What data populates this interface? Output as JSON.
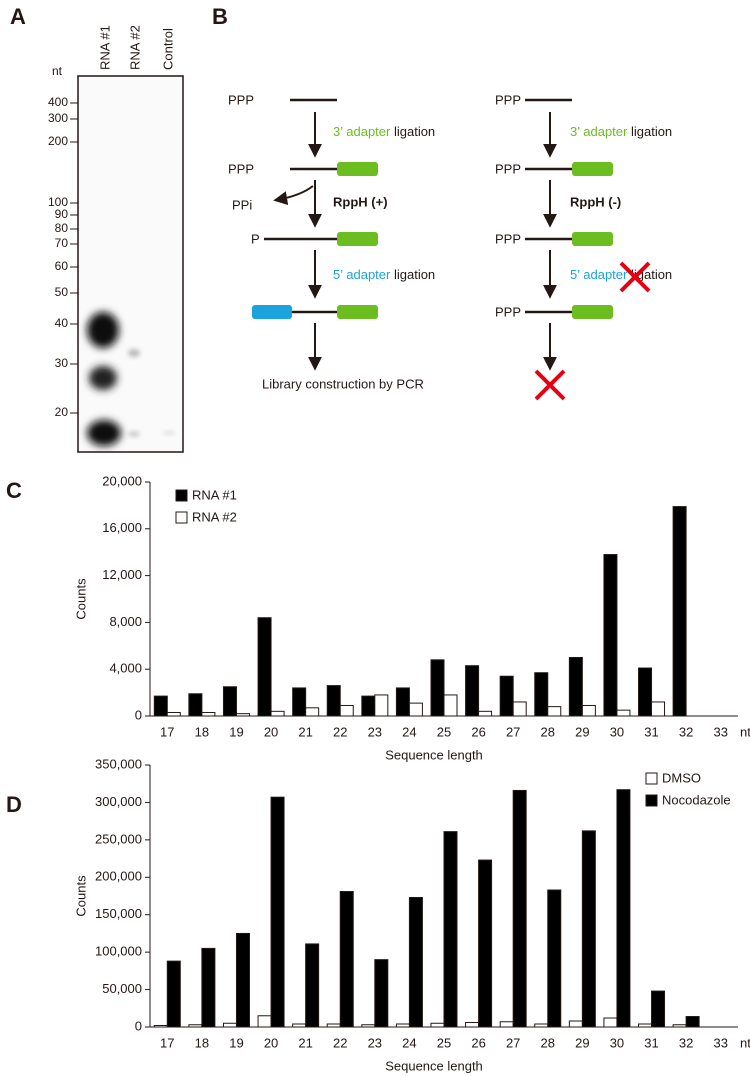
{
  "panel_labels": [
    "A",
    "B",
    "C",
    "D"
  ],
  "panel_a": {
    "unit": "nt",
    "lanes": [
      "RNA #1",
      "RNA #2",
      "Control"
    ],
    "markers": [
      "400",
      "300",
      "200",
      "100",
      "90",
      "80",
      "70",
      "60",
      "50",
      "40",
      "30",
      "20"
    ]
  },
  "panel_b": {
    "left": {
      "ppp_top": "PPP",
      "adapter3": "3’ adapter",
      "ligation3": "ligation",
      "ppp_mid": "PPP",
      "ppi": "PPi",
      "enzyme": "RppH (+)",
      "p": "P",
      "adapter5": "5’ adapter",
      "ligation5": "ligation",
      "result": "Library construction by PCR"
    },
    "right": {
      "ppp_top": "PPP",
      "adapter3": "3’ adapter",
      "ligation3": "ligation",
      "ppp_mid": "PPP",
      "enzyme": "RppH (-)",
      "ppp_third": "PPP",
      "adapter5": "5’ adapter",
      "ligation5": "ligation",
      "ppp_bottom": "PPP"
    }
  },
  "chart_data": [
    {
      "type": "bar",
      "x_label": "Sequence length",
      "y_label": "Counts",
      "x_unit": "nt",
      "categories": [
        "17",
        "18",
        "19",
        "20",
        "21",
        "22",
        "23",
        "24",
        "25",
        "26",
        "27",
        "28",
        "29",
        "30",
        "31",
        "32",
        "33"
      ],
      "series": [
        {
          "name": "RNA #1",
          "color": "#000000",
          "values": [
            1700,
            1900,
            2500,
            8400,
            2400,
            2600,
            1700,
            2400,
            4800,
            4300,
            3400,
            3700,
            5000,
            13800,
            4100,
            17900,
            0
          ]
        },
        {
          "name": "RNA #2",
          "color": "#ffffff",
          "values": [
            300,
            300,
            200,
            400,
            700,
            900,
            1800,
            1100,
            1800,
            400,
            1200,
            800,
            900,
            500,
            1200,
            0,
            0
          ]
        }
      ],
      "ylim": [
        0,
        20000
      ],
      "yticks": [
        0,
        {
          "value": 4000,
          "label": "4,000"
        },
        {
          "value": 8000,
          "label": "8,000"
        },
        {
          "value": 12000,
          "label": "12,000"
        },
        {
          "value": 16000,
          "label": "16,000"
        },
        {
          "value": 20000,
          "label": "20,000"
        }
      ],
      "legend": "upper left"
    },
    {
      "type": "bar",
      "x_label": "Sequence length",
      "y_label": "Counts",
      "x_unit": "nt",
      "categories": [
        "17",
        "18",
        "19",
        "20",
        "21",
        "22",
        "23",
        "24",
        "25",
        "26",
        "27",
        "28",
        "29",
        "30",
        "31",
        "32",
        "33"
      ],
      "series": [
        {
          "name": "DMSO",
          "color": "#ffffff",
          "values": [
            2000,
            3000,
            5000,
            15000,
            4000,
            4000,
            3000,
            4000,
            5000,
            6000,
            7000,
            4000,
            8000,
            12000,
            4000,
            3000,
            0
          ]
        },
        {
          "name": "Nocodazole",
          "color": "#000000",
          "values": [
            88000,
            105000,
            125000,
            307000,
            111000,
            181000,
            90000,
            173000,
            261000,
            223000,
            316000,
            183000,
            262000,
            317000,
            48000,
            14000,
            0
          ]
        }
      ],
      "ylim": [
        0,
        350000
      ],
      "yticks": [
        0,
        {
          "value": 50000,
          "label": "50,000"
        },
        {
          "value": 100000,
          "label": "100,000"
        },
        {
          "value": 150000,
          "label": "150,000"
        },
        {
          "value": 200000,
          "label": "200,000"
        },
        {
          "value": 250000,
          "label": "250,000"
        },
        {
          "value": 300000,
          "label": "300,000"
        },
        {
          "value": 350000,
          "label": "350,000"
        }
      ],
      "legend": "upper right"
    }
  ]
}
